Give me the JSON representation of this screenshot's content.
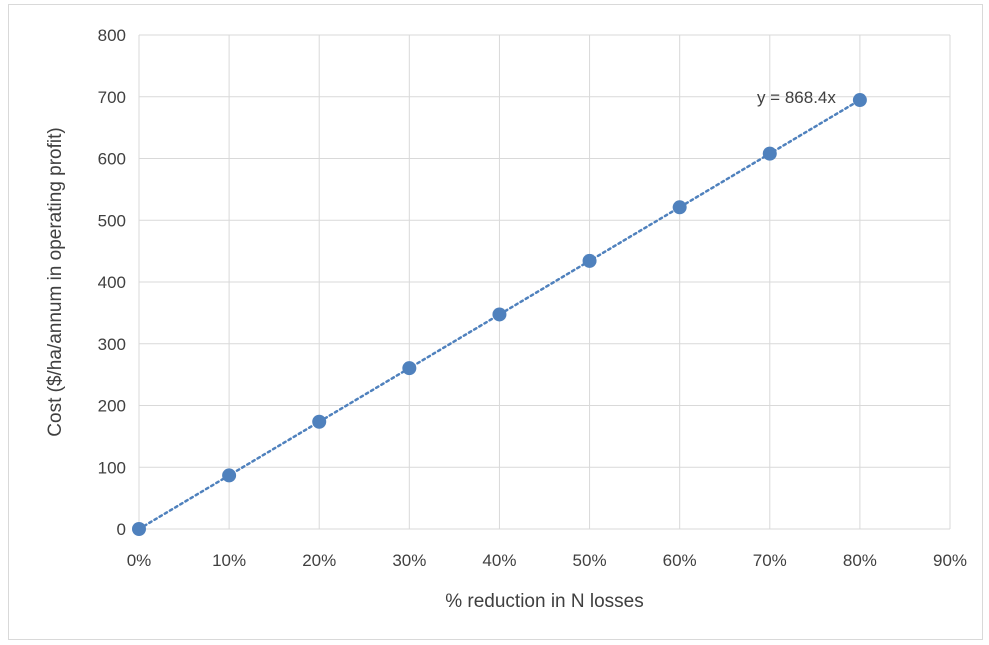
{
  "chart_data": {
    "type": "scatter",
    "title": "",
    "xlabel": "% reduction in N losses",
    "ylabel": "Cost ($/ha/annum in operating profit)",
    "xlim": [
      0,
      0.9
    ],
    "ylim": [
      0,
      800
    ],
    "x_ticks": [
      "0%",
      "10%",
      "20%",
      "30%",
      "40%",
      "50%",
      "60%",
      "70%",
      "80%",
      "90%"
    ],
    "y_ticks": [
      "0",
      "100",
      "200",
      "300",
      "400",
      "500",
      "600",
      "700",
      "800"
    ],
    "grid": true,
    "series": [
      {
        "x": [
          0,
          0.1,
          0.2,
          0.3,
          0.4,
          0.5,
          0.6,
          0.7,
          0.8
        ],
        "y": [
          0,
          86.8,
          173.7,
          260.5,
          347.4,
          434.2,
          521.0,
          607.9,
          694.7
        ],
        "color": "#4f81bd"
      }
    ],
    "trendline": {
      "type": "linear",
      "slope": 868.4,
      "intercept": 0,
      "style": "dotted",
      "color": "#4f81bd",
      "equation_label": "y = 868.4x"
    }
  }
}
